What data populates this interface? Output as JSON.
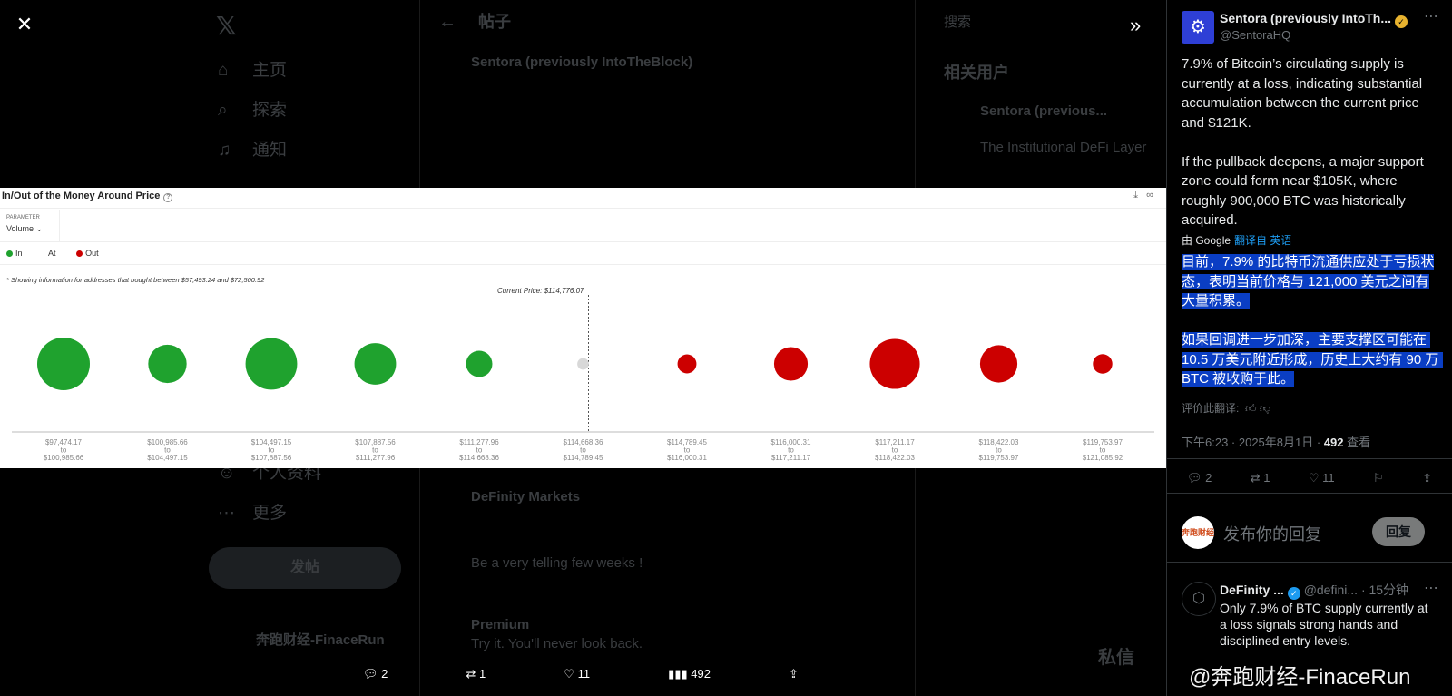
{
  "background": {
    "home": "主页",
    "explore": "探索",
    "notifications": "通知",
    "profile": "个人资料",
    "more": "更多",
    "post_button": "发帖",
    "header_title": "帖子",
    "search": "搜索",
    "related_users": "相关用户",
    "related_name": "Sentora (previous...",
    "related_desc": "The Institutional DeFi Layer",
    "author_name": "Sentora (previously IntoTheBlock)",
    "reply_author": "DeFinity Markets",
    "reply_line3": "Be a very telling few weeks !",
    "premium_name": "Premium",
    "premium_text": "Try it. You'll never look back.",
    "account_name": "奔跑财经-FinaceRun",
    "messages": "私信"
  },
  "chart": {
    "title": "In/Out of the Money Around Price",
    "parameter_label": "PARAMETER",
    "parameter_value": "Volume",
    "legend": [
      {
        "label": "In",
        "color": "#1fa22e"
      },
      {
        "label": "At",
        "color": "#cccccc"
      },
      {
        "label": "Out",
        "color": "#cc0000"
      }
    ],
    "note": "* Showing information for addresses that bought between $57,493.24 and $72,500.92",
    "current_price": "Current Price: $114,776.07",
    "tick_to": "to"
  },
  "chart_data": {
    "type": "scatter",
    "title": "In/Out of the Money Around Price",
    "categories": [
      {
        "from": "$97,474.17",
        "to": "$100,985.66",
        "status": "In",
        "size": 1.0
      },
      {
        "from": "$100,985.66",
        "to": "$104,497.15",
        "status": "In",
        "size": 0.73
      },
      {
        "from": "$104,497.15",
        "to": "$107,887.56",
        "status": "In",
        "size": 0.98
      },
      {
        "from": "$107,887.56",
        "to": "$111,277.96",
        "status": "In",
        "size": 0.79
      },
      {
        "from": "$111,277.96",
        "to": "$114,668.36",
        "status": "In",
        "size": 0.5
      },
      {
        "from": "$114,668.36",
        "to": "$114,789.45",
        "status": "At",
        "size": 0.22
      },
      {
        "from": "$114,789.45",
        "to": "$116,000.31",
        "status": "Out",
        "size": 0.36
      },
      {
        "from": "$116,000.31",
        "to": "$117,211.17",
        "status": "Out",
        "size": 0.64
      },
      {
        "from": "$117,211.17",
        "to": "$118,422.03",
        "status": "Out",
        "size": 0.95
      },
      {
        "from": "$118,422.03",
        "to": "$119,753.97",
        "status": "Out",
        "size": 0.71
      },
      {
        "from": "$119,753.97",
        "to": "$121,085.92",
        "status": "Out",
        "size": 0.37
      }
    ],
    "current_price_marker": "Current Price: $114,776.07"
  },
  "panel": {
    "author_name": "Sentora (previously IntoTh...",
    "author_handle": "@SentoraHQ",
    "body": "7.9% of Bitcoin’s circulating supply is currently at a loss, indicating substantial accumulation between the current price and $121K.\n\nIf the pullback deepens, a major support zone could form near $105K, where roughly 900,000 BTC was historically acquired.",
    "translated_by": "由 Google",
    "translated_from": "翻译自 英语",
    "translation": "目前，7.9% 的比特币流通供应处于亏损状态，表明当前价格与 121,000 美元之间有大量积累。\n\n如果回调进一步加深，主要支撑区可能在 10.5 万美元附近形成，历史上大约有 90 万 BTC 被收购于此。",
    "rate_translation": "评价此翻译:",
    "time": "下午6:23 · 2025年8月1日 ·",
    "views_count": "492",
    "views_label": "查看",
    "replies": "2",
    "reposts": "1",
    "likes": "11",
    "reply_placeholder": "发布你的回复",
    "reply_button": "回复",
    "reply_avatar_text": "奔跑财经",
    "reply2_name": "DeFinity ...",
    "reply2_handle": "@defini...",
    "reply2_time": "· 15分钟",
    "reply2_body": "Only 7.9% of BTC supply currently at a loss signals strong hands and disciplined entry levels."
  },
  "bottom_bar": {
    "replies": "2",
    "reposts": "1",
    "likes": "11",
    "views": "492"
  },
  "watermark": "@奔跑财经-FinaceRun"
}
